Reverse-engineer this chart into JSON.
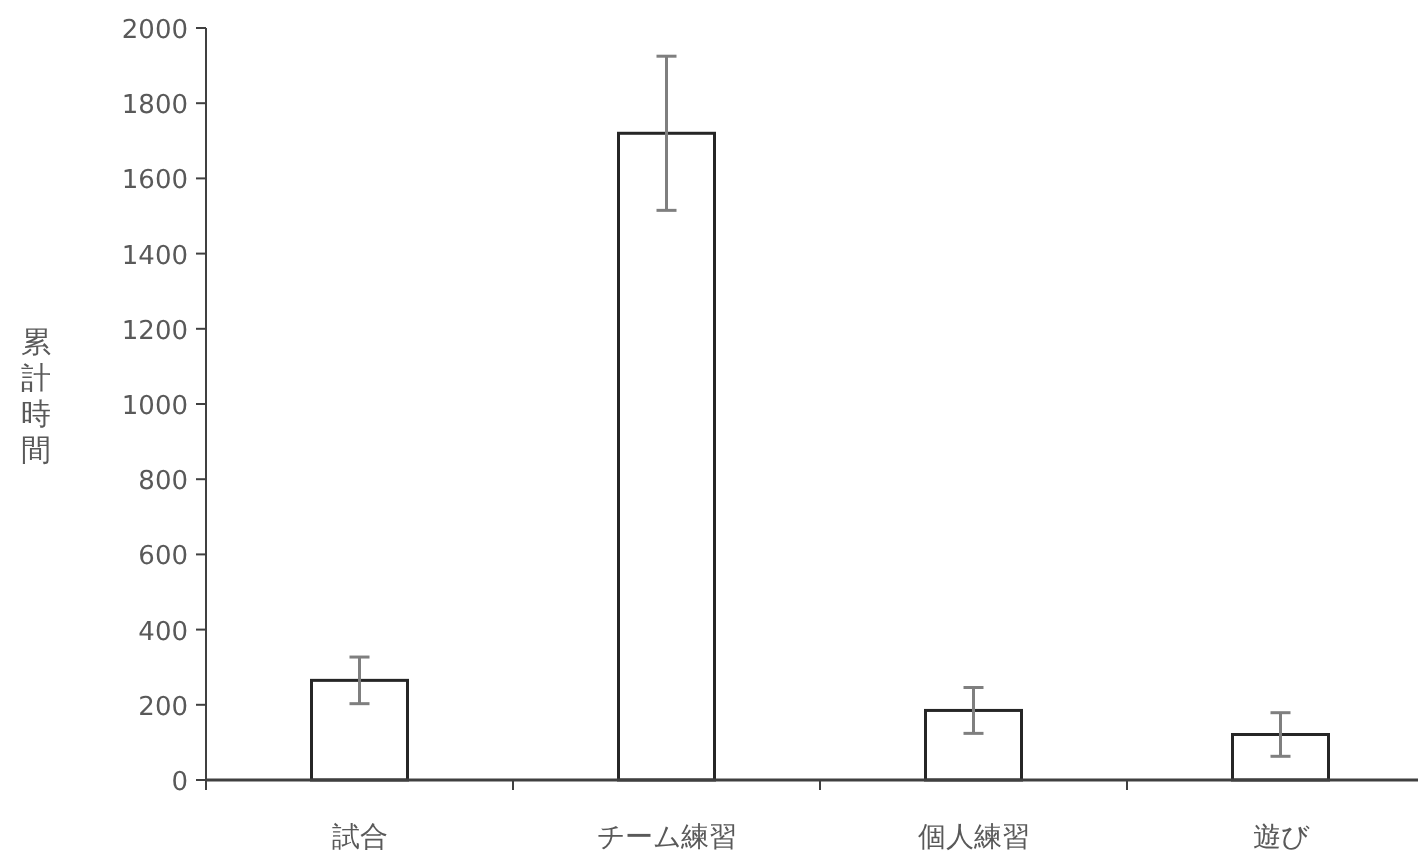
{
  "chart_data": {
    "type": "bar",
    "ylabel": "累計時間",
    "categories": [
      "試合",
      "チーム練習",
      "個人練習",
      "遊び"
    ],
    "values": [
      265,
      1720,
      185,
      121
    ],
    "errors": [
      62,
      205,
      61,
      58
    ],
    "color": "#ffffff",
    "ylim": [
      0,
      2000
    ],
    "yticks": [
      0,
      200,
      400,
      600,
      800,
      1000,
      1200,
      1400,
      1600,
      1800,
      2000
    ],
    "grid": false
  }
}
